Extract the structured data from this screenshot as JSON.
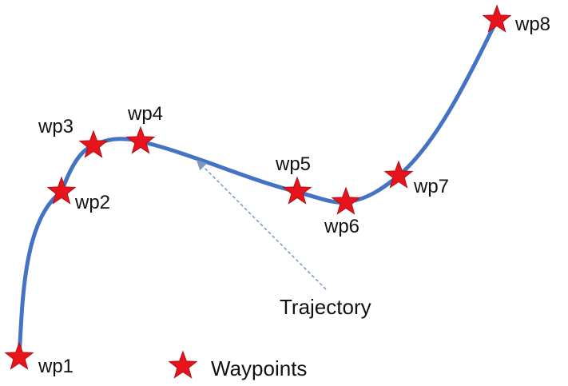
{
  "colors": {
    "trajectory": "#4472C4",
    "star_fill": "#E8141D",
    "star_stroke": "#B01015",
    "pointer": "#7F97C2"
  },
  "waypoints": [
    {
      "label": "wp1"
    },
    {
      "label": "wp2"
    },
    {
      "label": "wp3"
    },
    {
      "label": "wp4"
    },
    {
      "label": "wp5"
    },
    {
      "label": "wp6"
    },
    {
      "label": "wp7"
    },
    {
      "label": "wp8"
    }
  ],
  "trajectory_label": "Trajectory",
  "legend": {
    "label": "Waypoints",
    "icon": "star-icon"
  }
}
